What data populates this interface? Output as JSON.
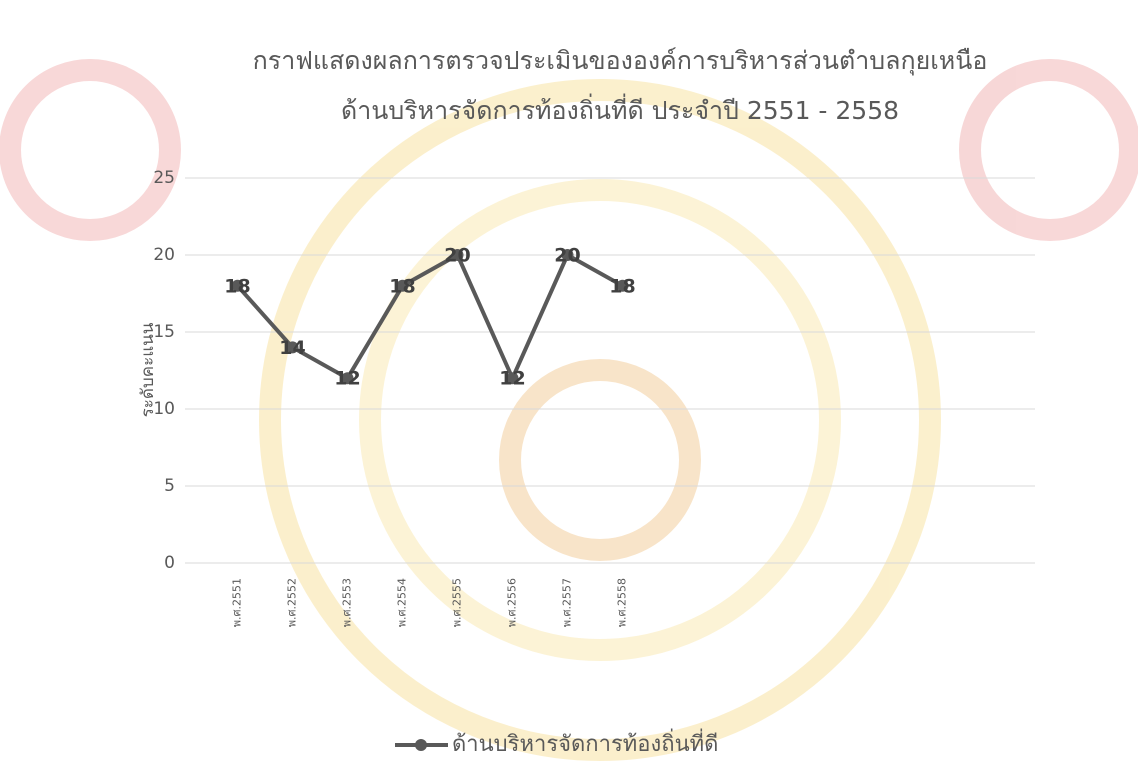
{
  "chart_data": {
    "type": "line",
    "title": [
      "กราฟแสดงผลการตรวจประเมินขององค์การบริหารส่วนตำบลกุยเหนือ",
      "ด้านบริหารจัดการท้องถิ่นที่ดี   ประจำปี 2551 - 2558"
    ],
    "y_label": "ระดับคะแนน",
    "categories": [
      "พ.ศ.2551",
      "พ.ศ.2552",
      "พ.ศ.2553",
      "พ.ศ.2554",
      "พ.ศ.2555",
      "พ.ศ.2556",
      "พ.ศ.2557",
      "พ.ศ.2558"
    ],
    "series": [
      {
        "name": "ด้านบริหารจัดการท้องถิ่นที่ดี",
        "color": "#595959",
        "values": [
          18,
          14,
          12,
          18,
          20,
          12,
          20,
          18
        ]
      }
    ],
    "ylim": [
      0,
      25
    ],
    "yticks": [
      0,
      5,
      10,
      15,
      20,
      25
    ],
    "grid": true,
    "legend": "bottom"
  }
}
